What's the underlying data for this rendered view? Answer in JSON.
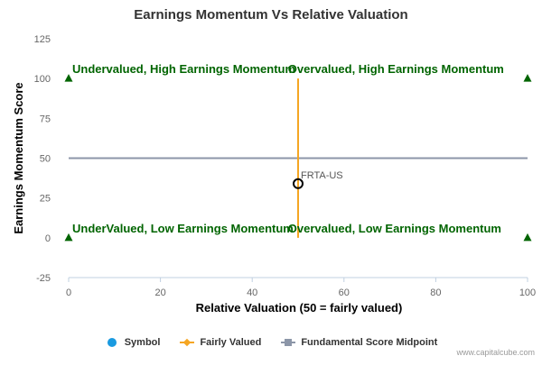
{
  "chart_data": {
    "type": "scatter",
    "title": "Earnings Momentum Vs Relative Valuation",
    "xlabel": "Relative Valuation (50 = fairly valued)",
    "ylabel": "Earnings Momentum Score",
    "xlim": [
      0,
      100
    ],
    "ylim": [
      -25,
      125
    ],
    "x_ticks": [
      "0",
      "20",
      "40",
      "60",
      "80",
      "100"
    ],
    "y_ticks": [
      "125",
      "100",
      "75",
      "50",
      "25",
      "0",
      "-25"
    ],
    "grid": false,
    "legend_placement": "bottom-center",
    "points": [
      {
        "label": "FRTA-US",
        "x": 50,
        "y": 34
      }
    ],
    "fairly_valued_x": 50,
    "fairly_valued_range": [
      0,
      100
    ],
    "midpoint_y": 50,
    "quadrant_markers": [
      {
        "x": 0,
        "y": 100
      },
      {
        "x": 100,
        "y": 100
      },
      {
        "x": 0,
        "y": 0
      },
      {
        "x": 100,
        "y": 0
      }
    ],
    "quadrant_labels": [
      {
        "text": "Undervalued, High Earnings Momentum",
        "x": 0,
        "y": 100
      },
      {
        "text": "Overvalued, High Earnings Momentum",
        "x": 47,
        "y": 100
      },
      {
        "text": "UnderValued, Low Earnings Momentum",
        "x": 0,
        "y": 0
      },
      {
        "text": "Overvalued, Low Earnings Momentum",
        "x": 47,
        "y": 0
      }
    ],
    "colors": {
      "symbol": "#1a9ae0",
      "fairly_valued": "#f5a623",
      "midpoint": "#8c96a8",
      "quadrant": "#006400",
      "axis": "#c0d0e0"
    }
  },
  "legend": {
    "symbol_label": "Symbol",
    "fairly_valued_label": "Fairly Valued",
    "midpoint_label": "Fundamental Score Midpoint"
  },
  "credit": "www.capitalcube.com"
}
